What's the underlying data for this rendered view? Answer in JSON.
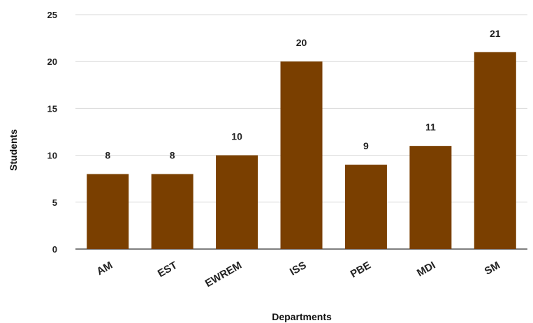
{
  "chart_data": {
    "type": "bar",
    "title": "",
    "xlabel": "Departments",
    "ylabel": "Students",
    "categories": [
      "AM",
      "EST",
      "EWREM",
      "ISS",
      "PBE",
      "MDI",
      "SM"
    ],
    "values": [
      8,
      8,
      10,
      20,
      9,
      11,
      21
    ],
    "data_labels": [
      "8",
      "8",
      "10",
      "20",
      "9",
      "11",
      "21"
    ],
    "ylim": [
      0,
      25
    ],
    "yticks": [
      "0",
      "5",
      "10",
      "15",
      "20",
      "25"
    ],
    "grid": true,
    "bar_color": "#7a3f00",
    "legend": "none"
  }
}
